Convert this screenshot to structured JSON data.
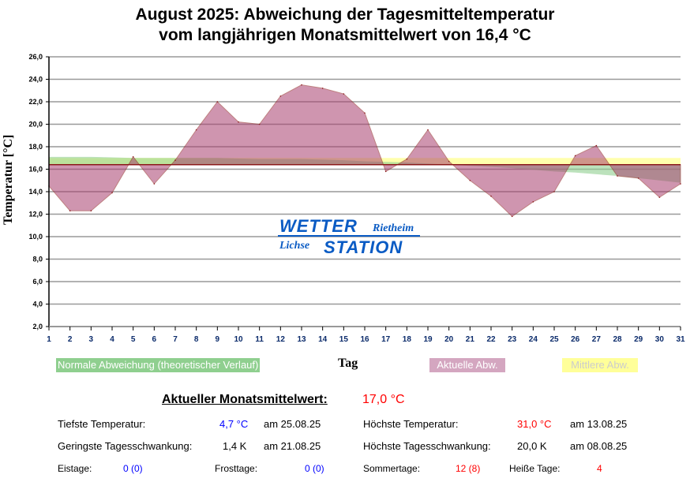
{
  "chart_data": {
    "type": "area",
    "title": "August 2025: Abweichung der Tagesmitteltemperatur",
    "subtitle": "vom langjährigen Monatsmittelwert von 16,4 °C",
    "xlabel": "Tag",
    "ylabel": "Temperatur [°C]",
    "ylim": [
      2,
      26
    ],
    "yticks": [
      "2,0",
      "4,0",
      "6,0",
      "8,0",
      "10,0",
      "12,0",
      "14,0",
      "16,0",
      "18,0",
      "20,0",
      "22,0",
      "24,0",
      "26,0"
    ],
    "x": [
      1,
      2,
      3,
      4,
      5,
      6,
      7,
      8,
      9,
      10,
      11,
      12,
      13,
      14,
      15,
      16,
      17,
      18,
      19,
      20,
      21,
      22,
      23,
      24,
      25,
      26,
      27,
      28,
      29,
      30,
      31
    ],
    "baseline": 16.4,
    "series": [
      {
        "name": "Normale Abweichung (theoretischer Verlauf)",
        "color": "#8fcf8f",
        "values": [
          17.1,
          17.1,
          17.1,
          17.05,
          17.0,
          17.0,
          17.0,
          17.0,
          17.0,
          16.95,
          16.9,
          16.9,
          16.9,
          16.85,
          16.8,
          16.7,
          16.65,
          16.6,
          16.5,
          16.4,
          16.3,
          16.2,
          16.1,
          15.95,
          15.8,
          15.7,
          15.55,
          15.4,
          15.2,
          15.0,
          14.8
        ]
      },
      {
        "name": "Aktuelle Abw.",
        "color": "#c88aa8",
        "values": [
          14.5,
          12.3,
          12.3,
          13.9,
          17.1,
          14.7,
          16.8,
          19.5,
          22.0,
          20.2,
          20.0,
          22.5,
          23.5,
          23.2,
          22.7,
          21.0,
          15.8,
          16.9,
          19.5,
          16.7,
          15.0,
          13.6,
          11.8,
          13.1,
          14.0,
          17.2,
          18.1,
          15.4,
          15.2,
          13.5,
          14.7
        ]
      },
      {
        "name": "Mittlere Abw.",
        "color": "#ffff99",
        "value": 17.0
      }
    ]
  },
  "logo": {
    "line1": "WETTER",
    "line1b": "Rietheim",
    "line2a": "Lichse",
    "line2b": "STATION"
  },
  "stats": {
    "monthly_label": "Aktueller Monatsmittelwert:",
    "monthly_value": "17,0 °C",
    "min_label": "Tiefste Temperatur:",
    "min_value": "4,7 °C",
    "min_date": "am 25.08.25",
    "max_label": "Höchste Temperatur:",
    "max_value": "31,0 °C",
    "max_date": "am 13.08.25",
    "minrange_label": "Geringste Tagesschwankung:",
    "minrange_value": "1,4 K",
    "minrange_date": "am 21.08.25",
    "maxrange_label": "Höchste Tagesschwankung:",
    "maxrange_value": "20,0 K",
    "maxrange_date": "am 08.08.25",
    "eis_label": "Eistage:",
    "eis_value": "0 (0)",
    "frost_label": "Frosttage:",
    "frost_value": "0 (0)",
    "sommer_label": "Sommertage:",
    "sommer_value": "12 (8)",
    "heiss_label": "Heiße Tage:",
    "heiss_value": "4"
  }
}
